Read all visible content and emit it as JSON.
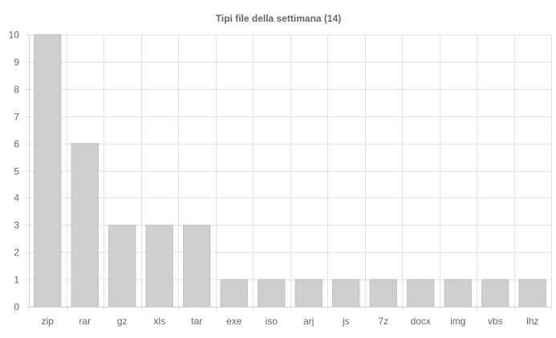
{
  "chart_data": {
    "type": "bar",
    "title": "Tipi file della settimana (14)",
    "xlabel": "",
    "ylabel": "",
    "categories": [
      "zip",
      "rar",
      "gz",
      "xls",
      "tar",
      "exe",
      "iso",
      "arj",
      "js",
      "7z",
      "docx",
      "img",
      "vbs",
      "lhz"
    ],
    "values": [
      10,
      6,
      3,
      3,
      3,
      1,
      1,
      1,
      1,
      1,
      1,
      1,
      1,
      1
    ],
    "ylim": [
      0,
      10
    ],
    "yticks": [
      0,
      1,
      2,
      3,
      4,
      5,
      6,
      7,
      8,
      9,
      10
    ],
    "grid": true,
    "legend": "none",
    "colors": {
      "bar_fill": "#cfcfd1",
      "bar_stroke": "#c4c4c6",
      "grid": "#e2e2e2",
      "axis": "#cfcfcf",
      "text": "#666666"
    }
  }
}
